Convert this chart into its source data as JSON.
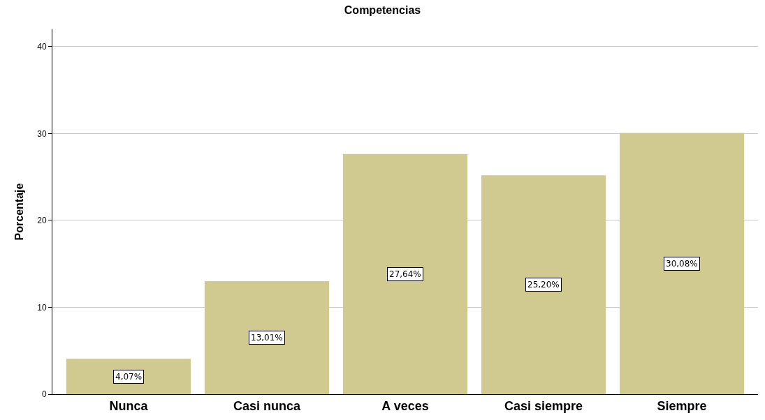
{
  "chart_data": {
    "type": "bar",
    "title": "Competencias",
    "ylabel": "Porcentaje",
    "categories": [
      "Nunca",
      "Casi nunca",
      "A veces",
      "Casi siempre",
      "Siempre"
    ],
    "values": [
      4.07,
      13.01,
      27.64,
      25.2,
      30.08
    ],
    "value_labels": [
      "4,07%",
      "13,01%",
      "27,64%",
      "25,20%",
      "30,08%"
    ],
    "color": "#d1ca90",
    "ylim": [
      0,
      42
    ],
    "yticks": [
      0,
      10,
      20,
      30,
      40
    ],
    "grid": "y"
  }
}
